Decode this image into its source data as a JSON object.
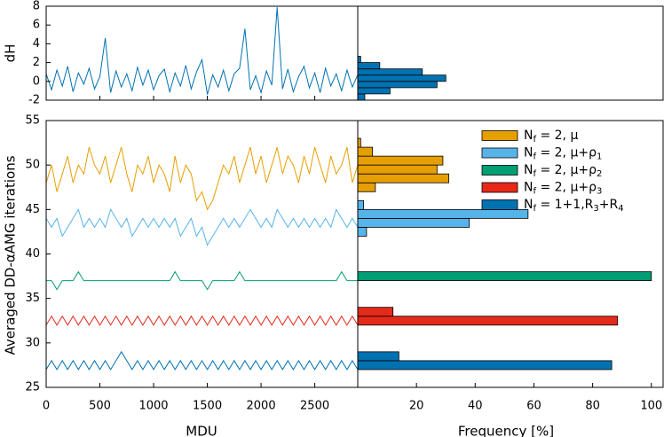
{
  "chart_data": [
    {
      "type": "line",
      "ylabel": "dH",
      "xlim": [
        0,
        2900
      ],
      "ylim": [
        -2,
        8
      ],
      "yticks": [
        -2,
        0,
        2,
        4,
        6,
        8
      ],
      "x": [
        0,
        50,
        100,
        150,
        200,
        250,
        300,
        350,
        400,
        450,
        500,
        550,
        600,
        650,
        700,
        750,
        800,
        850,
        900,
        950,
        1000,
        1050,
        1100,
        1150,
        1200,
        1250,
        1300,
        1350,
        1400,
        1450,
        1500,
        1550,
        1600,
        1650,
        1700,
        1750,
        1800,
        1850,
        1900,
        1950,
        2000,
        2050,
        2100,
        2150,
        2200,
        2250,
        2300,
        2350,
        2400,
        2450,
        2500,
        2550,
        2600,
        2650,
        2700,
        2750,
        2800,
        2850,
        2900
      ],
      "series": [
        {
          "color": "#0072b2",
          "values": [
            0.8,
            -0.9,
            1.2,
            -0.5,
            1.6,
            -1.1,
            0.9,
            -0.3,
            1.4,
            -0.8,
            0.5,
            4.6,
            -1.2,
            1.1,
            -0.6,
            0.8,
            -1.0,
            1.5,
            -0.4,
            1.2,
            -0.9,
            0.6,
            1.3,
            -1.1,
            0.9,
            -0.5,
            1.7,
            -0.8,
            1.0,
            2.3,
            -1.4,
            0.7,
            -0.6,
            1.2,
            -1.0,
            0.8,
            1.4,
            5.6,
            -0.9,
            0.6,
            -1.2,
            1.1,
            -0.4,
            7.9,
            -0.8,
            1.3,
            -1.1,
            0.5,
            1.6,
            -0.7,
            0.9,
            -1.2,
            1.4,
            -0.5,
            0.8,
            -1.0,
            1.2,
            -0.6,
            0.7
          ]
        }
      ]
    },
    {
      "type": "histogram",
      "orientation": "horizontal",
      "color": "#0072b2",
      "bins": [
        -2,
        -1.33,
        -0.67,
        0,
        0.67,
        1.33,
        2,
        2.67
      ],
      "values": [
        2.4,
        11,
        27,
        30,
        22,
        7.5,
        1
      ]
    },
    {
      "type": "line",
      "xlabel": "MDU",
      "ylabel": "Averaged DD-αAMG iterations",
      "xlim": [
        0,
        2900
      ],
      "xticks": [
        0,
        500,
        1000,
        1500,
        2000,
        2500
      ],
      "ylim": [
        25,
        55
      ],
      "yticks": [
        25,
        30,
        35,
        40,
        45,
        50,
        55
      ],
      "x": [
        0,
        50,
        100,
        150,
        200,
        250,
        300,
        350,
        400,
        450,
        500,
        550,
        600,
        650,
        700,
        750,
        800,
        850,
        900,
        950,
        1000,
        1050,
        1100,
        1150,
        1200,
        1250,
        1300,
        1350,
        1400,
        1450,
        1500,
        1550,
        1600,
        1650,
        1700,
        1750,
        1800,
        1850,
        1900,
        1950,
        2000,
        2050,
        2100,
        2150,
        2200,
        2250,
        2300,
        2350,
        2400,
        2450,
        2500,
        2550,
        2600,
        2650,
        2700,
        2750,
        2800,
        2850,
        2900
      ],
      "series": [
        {
          "color": "#e69f00",
          "values": [
            48,
            50,
            47,
            49,
            51,
            48,
            50,
            49,
            52,
            50,
            49,
            51,
            48,
            50,
            52,
            49,
            47,
            50,
            49,
            51,
            48,
            50,
            49,
            47,
            51,
            48,
            50,
            49,
            46,
            47,
            45,
            46,
            48,
            50,
            49,
            51,
            48,
            50,
            52,
            49,
            51,
            48,
            50,
            52,
            49,
            51,
            50,
            48,
            51,
            49,
            52,
            50,
            48,
            51,
            49,
            50,
            52,
            48,
            50
          ]
        },
        {
          "color": "#56b4e9",
          "values": [
            44,
            43,
            44,
            42,
            43,
            44,
            45,
            43,
            44,
            43,
            44,
            43,
            45,
            44,
            43,
            44,
            42,
            43,
            44,
            43,
            44,
            43,
            44,
            43,
            44,
            42,
            43,
            44,
            42,
            43,
            41,
            42,
            43,
            44,
            43,
            44,
            43,
            44,
            45,
            44,
            43,
            44,
            43,
            45,
            44,
            43,
            44,
            43,
            44,
            43,
            44,
            43,
            44,
            43,
            45,
            44,
            43,
            44,
            43
          ]
        },
        {
          "color": "#009e73",
          "values": [
            37,
            37,
            36,
            37,
            37,
            37,
            38,
            37,
            37,
            37,
            37,
            37,
            37,
            37,
            37,
            37,
            37,
            37,
            37,
            37,
            37,
            37,
            37,
            37,
            38,
            37,
            37,
            37,
            37,
            37,
            36,
            37,
            37,
            37,
            37,
            37,
            38,
            37,
            37,
            37,
            37,
            37,
            37,
            37,
            37,
            37,
            37,
            37,
            37,
            37,
            37,
            37,
            37,
            37,
            37,
            38,
            37,
            37,
            37
          ]
        },
        {
          "color": "#e52a1a",
          "values": [
            32,
            33,
            32,
            33,
            32,
            33,
            32,
            33,
            32,
            33,
            32,
            33,
            32,
            33,
            32,
            33,
            32,
            33,
            32,
            33,
            32,
            33,
            32,
            33,
            32,
            33,
            32,
            33,
            32,
            33,
            32,
            33,
            32,
            33,
            32,
            33,
            32,
            33,
            32,
            33,
            32,
            33,
            32,
            33,
            32,
            33,
            32,
            33,
            32,
            33,
            32,
            33,
            32,
            33,
            32,
            33,
            32,
            33,
            32
          ]
        },
        {
          "color": "#0072b2",
          "values": [
            27,
            28,
            27,
            28,
            27,
            28,
            27,
            28,
            27,
            28,
            27,
            28,
            27,
            28,
            29,
            28,
            27,
            28,
            27,
            28,
            27,
            28,
            27,
            28,
            27,
            28,
            27,
            28,
            27,
            28,
            27,
            28,
            27,
            28,
            27,
            28,
            27,
            28,
            27,
            28,
            27,
            28,
            27,
            28,
            27,
            28,
            27,
            28,
            27,
            28,
            27,
            28,
            27,
            28,
            27,
            28,
            27,
            28,
            27
          ]
        }
      ]
    },
    {
      "type": "histogram",
      "orientation": "horizontal",
      "xlabel": "Frequency [%]",
      "xlim": [
        0,
        104
      ],
      "xticks": [
        20,
        40,
        60,
        80,
        100
      ],
      "legend": "upper right",
      "series": [
        {
          "name": "Nf = 2, μ",
          "color": "#e69f00",
          "bins": [
            47,
            48,
            49,
            50,
            51,
            52,
            53
          ],
          "values": [
            6,
            31,
            27,
            29,
            5,
            1
          ]
        },
        {
          "name": "Nf = 2, μ+ρ1",
          "color": "#56b4e9",
          "bins": [
            42,
            43,
            44,
            45,
            46
          ],
          "values": [
            3,
            38,
            58,
            2
          ]
        },
        {
          "name": "Nf = 2, μ+ρ2",
          "color": "#009e73",
          "bins": [
            37,
            38
          ],
          "values": [
            100
          ]
        },
        {
          "name": "Nf = 2, μ+ρ3",
          "color": "#e52a1a",
          "bins": [
            32,
            33,
            34
          ],
          "values": [
            88.5,
            12
          ]
        },
        {
          "name": "Nf = 1+1,R3+R4",
          "color": "#0072b2",
          "bins": [
            27,
            28,
            29
          ],
          "values": [
            86.5,
            14
          ]
        }
      ]
    }
  ]
}
